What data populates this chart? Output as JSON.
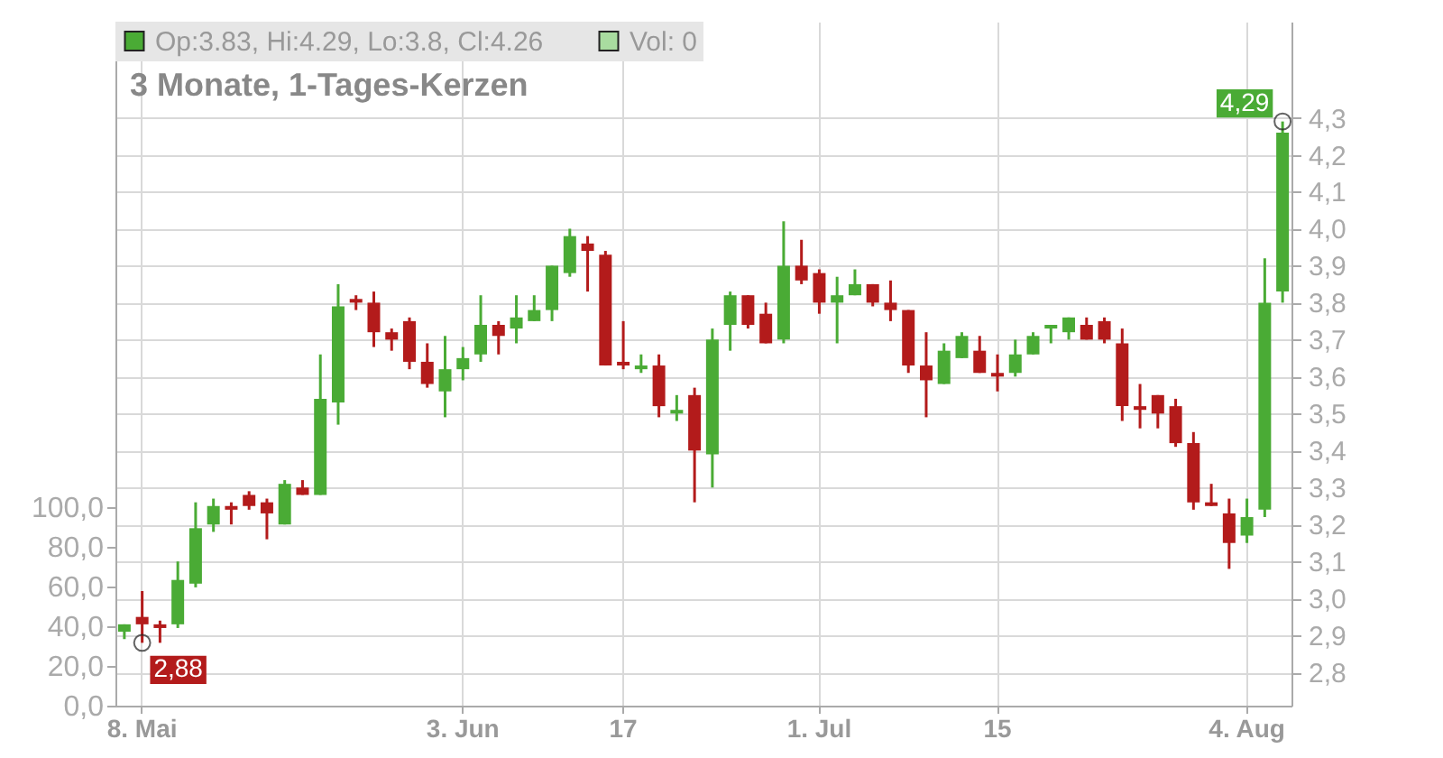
{
  "chart_data": {
    "type": "candlestick",
    "title": "3 Monate, 1-Tages-Kerzen",
    "categories": [
      null,
      "8. Mai",
      null,
      null,
      null,
      null,
      null,
      null,
      null,
      null,
      null,
      null,
      null,
      null,
      null,
      null,
      null,
      null,
      null,
      "3. Jun",
      null,
      null,
      null,
      null,
      null,
      null,
      null,
      null,
      "17",
      null,
      null,
      null,
      null,
      null,
      null,
      null,
      null,
      null,
      null,
      "1. Jul",
      null,
      null,
      null,
      null,
      null,
      null,
      null,
      null,
      null,
      "15",
      null,
      null,
      null,
      null,
      null,
      null,
      null,
      null,
      null,
      null,
      null,
      null,
      null,
      "4. Aug",
      null,
      null
    ],
    "series": [
      {
        "name": "Op:3.83, Hi:4.29, Lo:3.8, Cl:4.26",
        "color": "#4aab35",
        "ohlc": [
          [
            2.91,
            2.93,
            2.89,
            2.93
          ],
          [
            2.95,
            3.02,
            2.88,
            2.93
          ],
          [
            2.93,
            2.94,
            2.88,
            2.92
          ],
          [
            2.93,
            3.1,
            2.92,
            3.05
          ],
          [
            3.04,
            3.26,
            3.03,
            3.19
          ],
          [
            3.2,
            3.27,
            3.18,
            3.25
          ],
          [
            3.25,
            3.26,
            3.2,
            3.24
          ],
          [
            3.28,
            3.29,
            3.24,
            3.25
          ],
          [
            3.26,
            3.27,
            3.16,
            3.23
          ],
          [
            3.2,
            3.32,
            3.2,
            3.31
          ],
          [
            3.3,
            3.32,
            3.28,
            3.28
          ],
          [
            3.28,
            3.66,
            3.28,
            3.54
          ],
          [
            3.53,
            3.85,
            3.47,
            3.79
          ],
          [
            3.81,
            3.82,
            3.78,
            3.8
          ],
          [
            3.8,
            3.83,
            3.68,
            3.72
          ],
          [
            3.72,
            3.73,
            3.67,
            3.7
          ],
          [
            3.75,
            3.76,
            3.62,
            3.64
          ],
          [
            3.64,
            3.69,
            3.57,
            3.58
          ],
          [
            3.56,
            3.71,
            3.49,
            3.62
          ],
          [
            3.62,
            3.68,
            3.59,
            3.65
          ],
          [
            3.66,
            3.82,
            3.64,
            3.74
          ],
          [
            3.74,
            3.75,
            3.66,
            3.71
          ],
          [
            3.73,
            3.82,
            3.69,
            3.76
          ],
          [
            3.75,
            3.82,
            3.75,
            3.78
          ],
          [
            3.78,
            3.9,
            3.75,
            3.9
          ],
          [
            3.88,
            4.0,
            3.87,
            3.98
          ],
          [
            3.96,
            3.98,
            3.83,
            3.94
          ],
          [
            3.93,
            3.94,
            3.63,
            3.63
          ],
          [
            3.64,
            3.75,
            3.62,
            3.63
          ],
          [
            3.62,
            3.66,
            3.61,
            3.63
          ],
          [
            3.63,
            3.66,
            3.49,
            3.52
          ],
          [
            3.5,
            3.55,
            3.48,
            3.51
          ],
          [
            3.55,
            3.57,
            3.26,
            3.4
          ],
          [
            3.39,
            3.73,
            3.3,
            3.7
          ],
          [
            3.74,
            3.83,
            3.67,
            3.82
          ],
          [
            3.82,
            3.82,
            3.73,
            3.74
          ],
          [
            3.77,
            3.8,
            3.69,
            3.69
          ],
          [
            3.7,
            4.02,
            3.69,
            3.9
          ],
          [
            3.9,
            3.97,
            3.85,
            3.86
          ],
          [
            3.88,
            3.89,
            3.77,
            3.8
          ],
          [
            3.8,
            3.87,
            3.69,
            3.82
          ],
          [
            3.82,
            3.89,
            3.82,
            3.85
          ],
          [
            3.85,
            3.85,
            3.79,
            3.8
          ],
          [
            3.8,
            3.86,
            3.75,
            3.78
          ],
          [
            3.78,
            3.78,
            3.61,
            3.63
          ],
          [
            3.63,
            3.72,
            3.49,
            3.59
          ],
          [
            3.58,
            3.69,
            3.58,
            3.67
          ],
          [
            3.65,
            3.72,
            3.65,
            3.71
          ],
          [
            3.67,
            3.71,
            3.61,
            3.61
          ],
          [
            3.61,
            3.66,
            3.56,
            3.6
          ],
          [
            3.61,
            3.7,
            3.6,
            3.66
          ],
          [
            3.66,
            3.72,
            3.66,
            3.71
          ],
          [
            3.73,
            3.74,
            3.69,
            3.74
          ],
          [
            3.72,
            3.76,
            3.7,
            3.76
          ],
          [
            3.74,
            3.76,
            3.7,
            3.7
          ],
          [
            3.75,
            3.76,
            3.69,
            3.7
          ],
          [
            3.69,
            3.73,
            3.48,
            3.52
          ],
          [
            3.52,
            3.58,
            3.46,
            3.51
          ],
          [
            3.55,
            3.55,
            3.46,
            3.5
          ],
          [
            3.52,
            3.54,
            3.41,
            3.42
          ],
          [
            3.42,
            3.45,
            3.24,
            3.26
          ],
          [
            3.26,
            3.31,
            3.25,
            3.25
          ],
          [
            3.23,
            3.27,
            3.08,
            3.15
          ],
          [
            3.17,
            3.27,
            3.15,
            3.22
          ],
          [
            3.24,
            3.92,
            3.22,
            3.8
          ],
          [
            3.83,
            4.29,
            3.8,
            4.26
          ]
        ],
        "colors": [
          "#4aab35",
          "#b31b1b",
          "#b31b1b",
          "#4aab35",
          "#4aab35",
          "#4aab35",
          "#b31b1b",
          "#b31b1b",
          "#b31b1b",
          "#4aab35",
          "#b31b1b",
          "#4aab35",
          "#4aab35",
          "#b31b1b",
          "#b31b1b",
          "#b31b1b",
          "#b31b1b",
          "#b31b1b",
          "#4aab35",
          "#4aab35",
          "#4aab35",
          "#b31b1b",
          "#4aab35",
          "#4aab35",
          "#4aab35",
          "#4aab35",
          "#b31b1b",
          "#b31b1b",
          "#b31b1b",
          "#4aab35",
          "#b31b1b",
          "#4aab35",
          "#b31b1b",
          "#4aab35",
          "#4aab35",
          "#b31b1b",
          "#b31b1b",
          "#4aab35",
          "#b31b1b",
          "#b31b1b",
          "#4aab35",
          "#4aab35",
          "#b31b1b",
          "#b31b1b",
          "#b31b1b",
          "#b31b1b",
          "#4aab35",
          "#4aab35",
          "#b31b1b",
          "#b31b1b",
          "#4aab35",
          "#4aab35",
          "#4aab35",
          "#4aab35",
          "#b31b1b",
          "#b31b1b",
          "#b31b1b",
          "#b31b1b",
          "#b31b1b",
          "#b31b1b",
          "#b31b1b",
          "#b31b1b",
          "#b31b1b",
          "#4aab35",
          "#4aab35",
          "#4aab35"
        ]
      },
      {
        "name": "Vol: 0",
        "type": "bar",
        "axis": "y2",
        "color": "#a9dca0",
        "values": [
          0,
          0,
          0,
          0,
          0,
          0,
          0,
          0,
          0,
          0,
          0,
          0,
          0,
          0,
          0,
          0,
          0,
          0,
          0,
          0,
          0,
          0,
          0,
          0,
          0,
          0,
          0,
          0,
          0,
          0,
          0,
          0,
          0,
          0,
          0,
          0,
          0,
          0,
          0,
          0,
          0,
          0,
          0,
          0,
          0,
          0,
          0,
          0,
          0,
          0,
          0,
          0,
          0,
          0,
          0,
          0,
          0,
          0,
          0,
          0,
          0,
          0,
          0,
          0,
          0,
          0
        ]
      }
    ],
    "ylim": [
      2.71,
      4.56
    ],
    "yticks": [
      {
        "value": 2.8,
        "label": "2,8"
      },
      {
        "value": 2.9,
        "label": "2,9"
      },
      {
        "value": 3.0,
        "label": "3,0"
      },
      {
        "value": 3.1,
        "label": "3,1"
      },
      {
        "value": 3.2,
        "label": "3,2"
      },
      {
        "value": 3.3,
        "label": "3,3"
      },
      {
        "value": 3.4,
        "label": "3,4"
      },
      {
        "value": 3.5,
        "label": "3,5"
      },
      {
        "value": 3.6,
        "label": "3,6"
      },
      {
        "value": 3.7,
        "label": "3,7"
      },
      {
        "value": 3.8,
        "label": "3,8"
      },
      {
        "value": 3.9,
        "label": "3,9"
      },
      {
        "value": 4.0,
        "label": "4,0"
      },
      {
        "value": 4.1,
        "label": "4,1"
      },
      {
        "value": 4.2,
        "label": "4,2"
      },
      {
        "value": 4.3,
        "label": "4,3"
      }
    ],
    "y2lim": [
      0,
      345
    ],
    "y2ticks": [
      {
        "value": 0,
        "label": "0,0"
      },
      {
        "value": 20,
        "label": "20,0"
      },
      {
        "value": 40,
        "label": "40,0"
      },
      {
        "value": 60,
        "label": "60,0"
      },
      {
        "value": 80,
        "label": "80,0"
      },
      {
        "value": 100,
        "label": "100,0"
      }
    ],
    "annotations": [
      "4,29",
      "2,88"
    ],
    "grid": true,
    "legend": "top left"
  }
}
